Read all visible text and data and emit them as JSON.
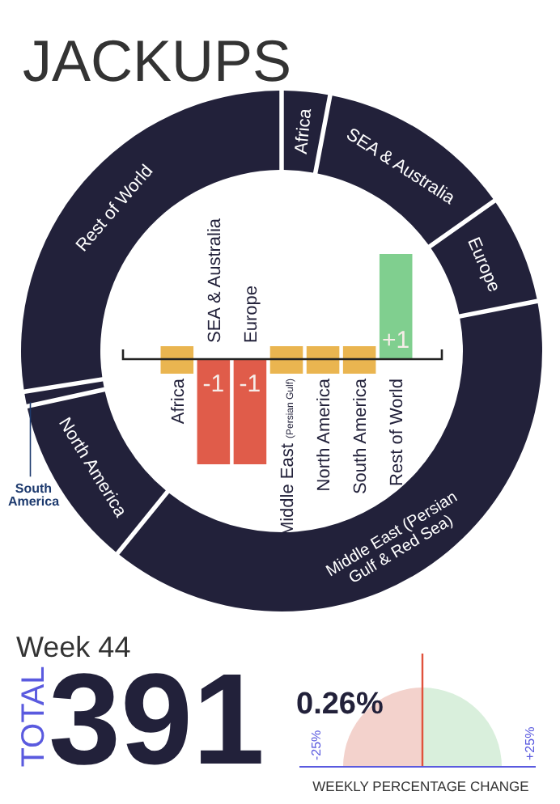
{
  "chart_data": [
    {
      "type": "donut",
      "title": "JACKUPS",
      "categories": [
        "Africa",
        "SEA & Australia",
        "Europe",
        "Middle East (Persian Gulf & Red Sea)",
        "North America",
        "South America",
        "Rest of World"
      ],
      "values": [
        2.8,
        12.2,
        6.6,
        39.3,
        10.7,
        0.7,
        27.7
      ],
      "colors": [
        "#22213a",
        "#22213a",
        "#22213a",
        "#22213a",
        "#22213a",
        "#22213a",
        "#22213a"
      ]
    },
    {
      "type": "bar",
      "categories": [
        "Africa",
        "SEA & Australia",
        "Europe",
        "Middle East (Persian Gulf)",
        "North America",
        "South America",
        "Rest of World"
      ],
      "values": [
        0,
        -1,
        -1,
        0,
        0,
        0,
        1
      ],
      "colors": [
        "#eab550",
        "#e05c4a",
        "#e05c4a",
        "#eab550",
        "#eab550",
        "#eab550",
        "#80cf8f"
      ],
      "value_labels": [
        null,
        "-1",
        "-1",
        null,
        null,
        null,
        "+1"
      ],
      "ylim": [
        -1,
        1
      ],
      "tick_labels": "x"
    },
    {
      "type": "other",
      "title": "Week 44",
      "ylabel": "TOTAL",
      "values": [
        391
      ],
      "data_labels": true
    },
    {
      "type": "other",
      "xlabel": "WEEKLY PERCENTAGE CHANGE",
      "values": [
        0.26
      ],
      "value_labels": [
        "0.26%"
      ],
      "annotations": [
        "-25%",
        "+25%"
      ],
      "color": "#e0523c"
    }
  ]
}
